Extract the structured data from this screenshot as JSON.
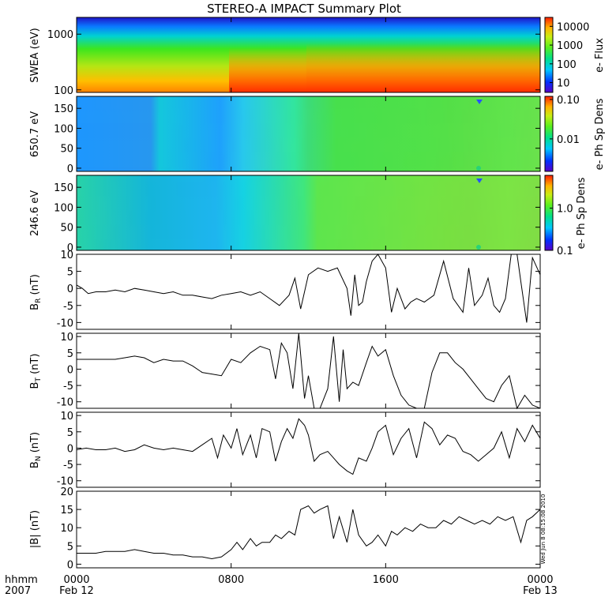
{
  "title": "STEREO-A IMPACT Summary Plot",
  "footer": {
    "row1_label": "hhmm",
    "row2_label": "2007",
    "time_ticks": [
      {
        "hour": 0,
        "label": "0000",
        "date": "Feb 12"
      },
      {
        "hour": 8,
        "label": "0800",
        "date": ""
      },
      {
        "hour": 16,
        "label": "1600",
        "date": ""
      },
      {
        "hour": 24,
        "label": "0000",
        "date": "Feb 13"
      }
    ]
  },
  "timestamp": "Wed Jun  8 08:15:08 2010",
  "chart_data": [
    {
      "type": "heatmap",
      "id": "swea",
      "ylabel": "SWEA (eV)",
      "yscale": "log",
      "ylim": [
        90,
        2000
      ],
      "yticks": [
        {
          "v": 1000,
          "label": "1000"
        },
        {
          "v": 100,
          "label": "100"
        }
      ],
      "colorbar": {
        "scale": "log",
        "range": [
          3,
          30000
        ],
        "label": "e- Flux",
        "ticks": [
          {
            "v": 10000,
            "label": "10000"
          },
          {
            "v": 1000,
            "label": "1000"
          },
          {
            "v": 100,
            "label": "100"
          },
          {
            "v": 10,
            "label": "10"
          }
        ]
      }
    },
    {
      "type": "heatmap",
      "id": "pad650",
      "ylabel": "650.7 eV",
      "yscale": "linear",
      "ylim": [
        -8,
        180
      ],
      "yticks": [
        {
          "v": 150,
          "label": "150"
        },
        {
          "v": 100,
          "label": "100"
        },
        {
          "v": 50,
          "label": "50"
        },
        {
          "v": 0,
          "label": "0"
        }
      ],
      "colorbar": {
        "scale": "log",
        "range": [
          0.0015,
          0.12
        ],
        "label": "e- Ph Sp Dens",
        "ticks": [
          {
            "v": 0.1,
            "label": "0.10"
          },
          {
            "v": 0.01,
            "label": "0.01"
          }
        ]
      }
    },
    {
      "type": "heatmap",
      "id": "pad246",
      "ylabel": "246.6 eV",
      "yscale": "linear",
      "ylim": [
        -8,
        180
      ],
      "yticks": [
        {
          "v": 150,
          "label": "150"
        },
        {
          "v": 100,
          "label": "100"
        },
        {
          "v": 50,
          "label": "50"
        },
        {
          "v": 0,
          "label": "0"
        }
      ],
      "colorbar": {
        "scale": "log",
        "range": [
          0.1,
          6
        ],
        "label": "e- Ph Sp Dens",
        "ticks": [
          {
            "v": 1.0,
            "label": "1.0"
          },
          {
            "v": 0.1,
            "label": "0.1"
          }
        ]
      }
    },
    {
      "type": "line",
      "id": "br",
      "ylabel_main": "B",
      "ylabel_sub": "R",
      "ylabel_tail": " (nT)",
      "ylim": [
        -12,
        10
      ],
      "yticks": [
        {
          "v": 10,
          "label": "10"
        },
        {
          "v": 5,
          "label": "5"
        },
        {
          "v": 0,
          "label": "0"
        },
        {
          "v": -5,
          "label": "-5"
        },
        {
          "v": -10,
          "label": "-10"
        }
      ],
      "x": [
        0,
        0.3,
        0.6,
        1,
        1.5,
        2,
        2.5,
        3,
        3.5,
        4,
        4.5,
        5,
        5.5,
        6,
        6.5,
        7,
        7.5,
        8,
        8.5,
        9,
        9.5,
        10,
        10.5,
        11,
        11.3,
        11.6,
        11.8,
        12,
        12.5,
        13,
        13.5,
        14,
        14.2,
        14.4,
        14.6,
        14.8,
        15,
        15.3,
        15.6,
        16,
        16.3,
        16.6,
        17,
        17.3,
        17.6,
        18,
        18.5,
        19,
        19.5,
        20,
        20.3,
        20.6,
        21,
        21.3,
        21.6,
        21.9,
        22.2,
        22.5,
        22.8,
        23,
        23.3,
        23.6,
        24
      ],
      "y": [
        1,
        0,
        -1.5,
        -1,
        -1,
        -0.5,
        -1,
        0,
        -0.5,
        -1,
        -1.5,
        -1,
        -2,
        -2,
        -2.5,
        -3,
        -2,
        -1.5,
        -1,
        -2,
        -1,
        -3,
        -5,
        -2,
        3,
        -6,
        -1,
        4,
        6,
        5,
        6,
        0,
        -8,
        4,
        -5,
        -4,
        2,
        8,
        10,
        6,
        -7,
        0,
        -6,
        -4,
        -3,
        -4,
        -2,
        8,
        -3,
        -7,
        6,
        -5,
        -2,
        3,
        -5,
        -7,
        -3,
        10,
        10,
        2,
        -10,
        9,
        4
      ]
    },
    {
      "type": "line",
      "id": "bt",
      "ylabel_main": "B",
      "ylabel_sub": "T",
      "ylabel_tail": " (nT)",
      "ylim": [
        -12,
        11
      ],
      "yticks": [
        {
          "v": 10,
          "label": "10"
        },
        {
          "v": 5,
          "label": "5"
        },
        {
          "v": 0,
          "label": "0"
        },
        {
          "v": -5,
          "label": "-5"
        },
        {
          "v": -10,
          "label": "-10"
        }
      ],
      "x": [
        0,
        0.5,
        1,
        1.5,
        2,
        2.5,
        3,
        3.5,
        4,
        4.5,
        5,
        5.5,
        6,
        6.5,
        7,
        7.5,
        8,
        8.5,
        9,
        9.5,
        10,
        10.3,
        10.6,
        10.9,
        11.2,
        11.5,
        11.8,
        12,
        12.3,
        12.6,
        13,
        13.3,
        13.6,
        13.8,
        14,
        14.3,
        14.6,
        15,
        15.3,
        15.6,
        16,
        16.4,
        16.8,
        17.2,
        17.6,
        18,
        18.4,
        18.8,
        19.2,
        19.6,
        20,
        20.4,
        20.8,
        21.2,
        21.6,
        22,
        22.4,
        22.8,
        23.2,
        23.6,
        24
      ],
      "y": [
        3,
        3,
        3,
        3,
        3,
        3.5,
        4,
        3.5,
        2,
        3,
        2.5,
        2.5,
        1,
        -1,
        -1.5,
        -2,
        3,
        2,
        5,
        7,
        6,
        -3,
        8,
        5,
        -6,
        11,
        -9,
        -2,
        -12,
        -12,
        -6,
        10,
        -10,
        6,
        -6,
        -4,
        -5,
        2,
        7,
        4,
        6,
        -2,
        -8,
        -11,
        -12,
        -12,
        -1,
        5,
        5,
        2,
        0,
        -3,
        -6,
        -9,
        -10,
        -5,
        -2,
        -12,
        -8,
        -11,
        -12
      ]
    },
    {
      "type": "line",
      "id": "bn",
      "ylabel_main": "B",
      "ylabel_sub": "N",
      "ylabel_tail": " (nT)",
      "ylim": [
        -12,
        11
      ],
      "yticks": [
        {
          "v": 10,
          "label": "10"
        },
        {
          "v": 5,
          "label": "5"
        },
        {
          "v": 0,
          "label": "0"
        },
        {
          "v": -5,
          "label": "-5"
        },
        {
          "v": -10,
          "label": "-10"
        }
      ],
      "x": [
        0,
        0.5,
        1,
        1.5,
        2,
        2.5,
        3,
        3.5,
        4,
        4.5,
        5,
        5.5,
        6,
        6.5,
        7,
        7.3,
        7.6,
        8,
        8.3,
        8.6,
        9,
        9.3,
        9.6,
        10,
        10.3,
        10.6,
        10.9,
        11.2,
        11.5,
        11.8,
        12,
        12.3,
        12.6,
        13,
        13.3,
        13.6,
        14,
        14.3,
        14.6,
        15,
        15.3,
        15.6,
        16,
        16.4,
        16.8,
        17.2,
        17.6,
        18,
        18.4,
        18.8,
        19.2,
        19.6,
        20,
        20.4,
        20.8,
        21.2,
        21.6,
        22,
        22.4,
        22.8,
        23.2,
        23.6,
        24
      ],
      "y": [
        -0.5,
        0,
        -0.5,
        -0.5,
        0,
        -1,
        -0.5,
        1,
        0,
        -0.5,
        0,
        -0.5,
        -1,
        1,
        3,
        -3,
        4,
        0,
        6,
        -2,
        4,
        -3,
        6,
        5,
        -4,
        2,
        6,
        3,
        9,
        7,
        4,
        -4,
        -2,
        -1,
        -3,
        -5,
        -7,
        -8,
        -3,
        -4,
        0,
        5,
        7,
        -2,
        3,
        6,
        -3,
        8,
        6,
        1,
        4,
        3,
        -1,
        -2,
        -4,
        -2,
        0,
        5,
        -3,
        6,
        2,
        7,
        3
      ]
    },
    {
      "type": "line",
      "id": "babs",
      "ylabel_main": "|B|",
      "ylabel_sub": "",
      "ylabel_tail": " (nT)",
      "ylim": [
        -1,
        20
      ],
      "yticks": [
        {
          "v": 20,
          "label": "20"
        },
        {
          "v": 15,
          "label": "15"
        },
        {
          "v": 10,
          "label": "10"
        },
        {
          "v": 5,
          "label": "5"
        },
        {
          "v": 0,
          "label": "0"
        }
      ],
      "x": [
        0,
        0.5,
        1,
        1.5,
        2,
        2.5,
        3,
        3.5,
        4,
        4.5,
        5,
        5.5,
        6,
        6.5,
        7,
        7.5,
        8,
        8.3,
        8.6,
        9,
        9.3,
        9.6,
        10,
        10.3,
        10.6,
        11,
        11.3,
        11.6,
        12,
        12.3,
        12.6,
        13,
        13.3,
        13.6,
        14,
        14.3,
        14.6,
        15,
        15.3,
        15.6,
        16,
        16.3,
        16.6,
        17,
        17.4,
        17.8,
        18.2,
        18.6,
        19,
        19.4,
        19.8,
        20.2,
        20.6,
        21,
        21.4,
        21.8,
        22.2,
        22.6,
        23,
        23.3,
        23.6,
        24
      ],
      "y": [
        3,
        3,
        3,
        3.5,
        3.5,
        3.5,
        4,
        3.5,
        3,
        3,
        2.5,
        2.5,
        2,
        2,
        1.5,
        2,
        4,
        6,
        4,
        7,
        5,
        6,
        6,
        8,
        7,
        9,
        8,
        15,
        16,
        14,
        15,
        16,
        7,
        13,
        6,
        15,
        8,
        5,
        6,
        8,
        5,
        9,
        8,
        10,
        9,
        11,
        10,
        10,
        12,
        11,
        13,
        12,
        11,
        12,
        11,
        13,
        12,
        13,
        6,
        12,
        13,
        15
      ]
    }
  ]
}
